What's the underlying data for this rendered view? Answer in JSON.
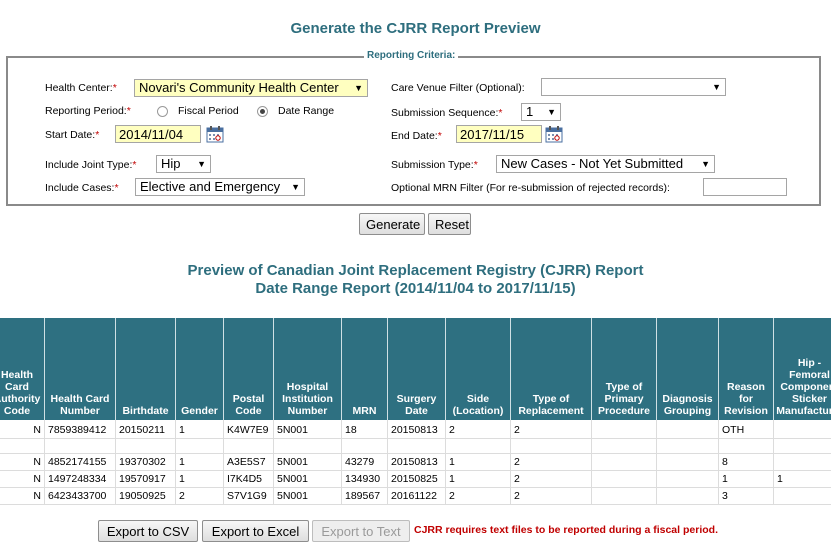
{
  "page_title": "Generate the CJRR Report Preview",
  "criteria": {
    "legend": "Reporting Criteria:",
    "health_center_label": "Health Center:",
    "health_center_value": "Novari's Community Health Center",
    "reporting_period_label": "Reporting Period:",
    "fiscal_period_label": "Fiscal Period",
    "date_range_label": "Date Range",
    "start_date_label": "Start Date:",
    "start_date_value": "2014/11/04",
    "include_joint_label": "Include Joint Type:",
    "include_joint_value": "Hip",
    "include_cases_label": "Include Cases:",
    "include_cases_value": "Elective and Emergency",
    "care_venue_label": "Care Venue Filter (Optional):",
    "care_venue_value": "",
    "submission_sequence_label": "Submission Sequence:",
    "submission_sequence_value": "1",
    "end_date_label": "End Date:",
    "end_date_value": "2017/11/15",
    "submission_type_label": "Submission Type:",
    "submission_type_value": "New Cases - Not Yet Submitted",
    "mrn_filter_label": "Optional MRN Filter (For re-submission of rejected records):",
    "mrn_filter_value": "",
    "required_mark": "*"
  },
  "actions": {
    "generate": "Generate",
    "reset": "Reset"
  },
  "preview": {
    "title_line1": "Preview of Canadian Joint Replacement Registry (CJRR) Report",
    "title_line2": "Date Range Report (2014/11/04 to 2017/11/15)"
  },
  "table": {
    "headers": [
      "Health Card Authority Code",
      "Health Card Number",
      "Birthdate",
      "Gender",
      "Postal Code",
      "Hospital Institution Number",
      "MRN",
      "Surgery Date",
      "Side (Location)",
      "Type of Replacement",
      "Type of Primary Procedure",
      "Diagnosis Grouping",
      "Reason for Revision",
      "Hip - Femoral Component Sticker Manufacturer"
    ],
    "rows": [
      [
        "N",
        "7859389412",
        "20150211",
        "1",
        "K4W7E9",
        "5N001",
        "18",
        "20150813",
        "2",
        "2",
        "",
        "",
        "OTH",
        ""
      ],
      [
        "N",
        "4852174155",
        "19370302",
        "1",
        "A3E5S7",
        "5N001",
        "43279",
        "20150813",
        "1",
        "2",
        "",
        "",
        "8",
        ""
      ],
      [
        "N",
        "1497248334",
        "19570917",
        "1",
        "I7K4D5",
        "5N001",
        "134930",
        "20150825",
        "1",
        "2",
        "",
        "",
        "1",
        "1"
      ],
      [
        "N",
        "6423433700",
        "19050925",
        "2",
        "S7V1G9",
        "5N001",
        "189567",
        "20161122",
        "2",
        "2",
        "",
        "",
        "3",
        ""
      ]
    ]
  },
  "export": {
    "csv": "Export to CSV",
    "excel": "Export to Excel",
    "text": "Export to Text",
    "message": "CJRR requires text files to be reported during a fiscal period."
  },
  "colors": {
    "accent": "#2e7081",
    "title": "#2e6e7e",
    "required": "#c00000",
    "highlight": "#ffffc0"
  },
  "icons": {
    "calendar": "calendar-icon",
    "dropdown": "chevron-down-icon"
  }
}
